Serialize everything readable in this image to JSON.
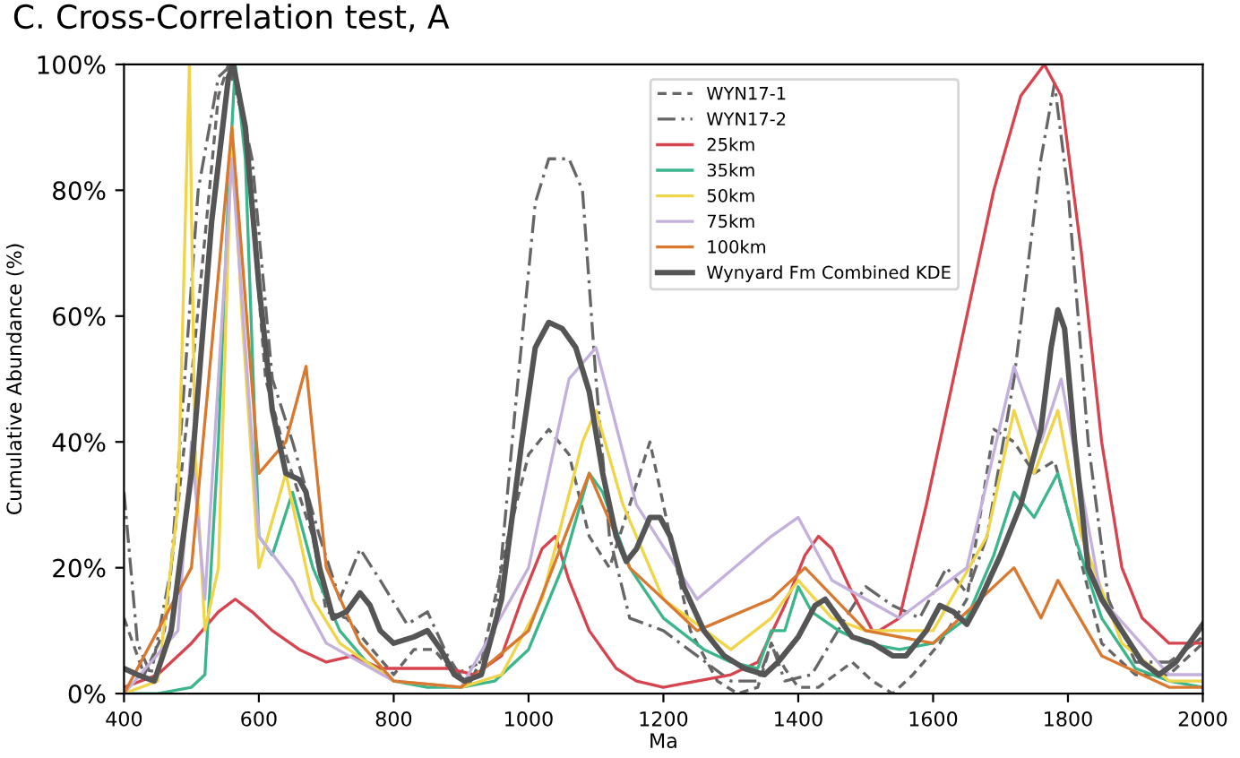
{
  "chart_data": {
    "type": "line",
    "title": "C. Cross-Correlation test, A",
    "xlabel": "Ma",
    "ylabel": "Cumulative Abundance (%)",
    "xlim": [
      400,
      2000
    ],
    "xticks": [
      400,
      600,
      800,
      1000,
      1200,
      1400,
      1600,
      1800,
      2000
    ],
    "ylim": [
      0,
      100
    ],
    "yticks": [
      {
        "value": 0,
        "label": "0%"
      },
      {
        "value": 20,
        "label": "20%"
      },
      {
        "value": 40,
        "label": "40%"
      },
      {
        "value": 60,
        "label": "60%"
      },
      {
        "value": 80,
        "label": "80%"
      },
      {
        "value": 100,
        "label": "100%"
      }
    ],
    "grid": false,
    "legend": "top",
    "marker": "none",
    "series": [
      {
        "name": "WYN17-1",
        "color": "#666666",
        "line_style": "dashed",
        "x": [
          400,
          430,
          460,
          500,
          540,
          555,
          580,
          610,
          640,
          680,
          700,
          730,
          760,
          800,
          830,
          860,
          890,
          930,
          970,
          1000,
          1030,
          1060,
          1090,
          1120,
          1150,
          1180,
          1210,
          1240,
          1280,
          1310,
          1340,
          1360,
          1380,
          1400,
          1430,
          1480,
          1510,
          1540,
          1570,
          1610,
          1650,
          1690,
          1720,
          1750,
          1780,
          1810,
          1850,
          1900,
          1950,
          2000
        ],
        "values": [
          12,
          3,
          10,
          50,
          95,
          100,
          90,
          50,
          38,
          25,
          13,
          12,
          8,
          3,
          7,
          7,
          3,
          5,
          25,
          38,
          42,
          38,
          25,
          20,
          30,
          40,
          25,
          10,
          2,
          0,
          1,
          8,
          4,
          1,
          1,
          5,
          2,
          0,
          3,
          8,
          15,
          42,
          40,
          35,
          37,
          25,
          8,
          3,
          3,
          8
        ]
      },
      {
        "name": "WYN17-2",
        "color": "#666666",
        "line_style": "dashdot",
        "x": [
          400,
          420,
          440,
          470,
          510,
          540,
          560,
          590,
          620,
          650,
          690,
          720,
          750,
          780,
          820,
          850,
          880,
          910,
          950,
          980,
          1010,
          1030,
          1060,
          1080,
          1100,
          1120,
          1150,
          1200,
          1250,
          1300,
          1340,
          1360,
          1380,
          1420,
          1470,
          1500,
          1540,
          1580,
          1620,
          1650,
          1680,
          1720,
          1760,
          1780,
          1800,
          1830,
          1860,
          1900,
          1950,
          2000
        ],
        "values": [
          32,
          8,
          3,
          20,
          80,
          98,
          100,
          85,
          50,
          40,
          25,
          15,
          23,
          18,
          11,
          13,
          6,
          1,
          10,
          45,
          78,
          85,
          85,
          80,
          50,
          25,
          12,
          10,
          6,
          2,
          2,
          8,
          2,
          3,
          12,
          17,
          14,
          12,
          20,
          16,
          25,
          50,
          85,
          97,
          80,
          40,
          15,
          5,
          5,
          9
        ]
      },
      {
        "name": "25km",
        "color": "#d6454f",
        "x": [
          400,
          450,
          500,
          540,
          565,
          590,
          620,
          660,
          700,
          740,
          780,
          830,
          880,
          920,
          960,
          990,
          1020,
          1040,
          1060,
          1090,
          1130,
          1160,
          1200,
          1250,
          1300,
          1340,
          1380,
          1410,
          1430,
          1450,
          1480,
          1510,
          1520,
          1550,
          1590,
          1640,
          1690,
          1730,
          1765,
          1790,
          1820,
          1850,
          1880,
          1910,
          1950,
          2000
        ],
        "values": [
          1,
          3,
          8,
          13,
          15,
          13,
          10,
          7,
          5,
          6,
          4,
          4,
          4,
          3,
          6,
          15,
          23,
          25,
          18,
          10,
          4,
          2,
          1,
          2,
          3,
          5,
          14,
          22,
          25,
          23,
          16,
          10,
          10,
          12,
          30,
          55,
          80,
          95,
          100,
          95,
          70,
          40,
          20,
          12,
          8,
          8
        ]
      },
      {
        "name": "35km",
        "color": "#3bb58a",
        "x": [
          400,
          450,
          500,
          520,
          540,
          555,
          565,
          580,
          600,
          620,
          650,
          680,
          720,
          760,
          800,
          850,
          900,
          950,
          1000,
          1050,
          1090,
          1110,
          1150,
          1200,
          1260,
          1300,
          1340,
          1360,
          1380,
          1400,
          1420,
          1460,
          1500,
          1550,
          1600,
          1650,
          1690,
          1720,
          1750,
          1785,
          1810,
          1850,
          1900,
          1950,
          2000
        ],
        "values": [
          0,
          0,
          1,
          3,
          40,
          80,
          100,
          85,
          25,
          22,
          32,
          20,
          10,
          5,
          2,
          1,
          1,
          2,
          7,
          20,
          35,
          32,
          20,
          12,
          7,
          5,
          4,
          10,
          10,
          17,
          13,
          10,
          8,
          7,
          8,
          12,
          22,
          32,
          28,
          35,
          25,
          12,
          4,
          2,
          1
        ]
      },
      {
        "name": "50km",
        "color": "#f0d54a",
        "x": [
          400,
          450,
          480,
          497,
          505,
          520,
          540,
          560,
          575,
          600,
          640,
          680,
          720,
          800,
          900,
          960,
          1020,
          1080,
          1100,
          1140,
          1200,
          1300,
          1360,
          1400,
          1450,
          1500,
          1600,
          1680,
          1720,
          1750,
          1785,
          1820,
          1880,
          1950,
          2000
        ],
        "values": [
          0,
          2,
          30,
          100,
          40,
          10,
          20,
          90,
          60,
          20,
          35,
          15,
          8,
          2,
          1,
          3,
          15,
          40,
          45,
          30,
          15,
          7,
          12,
          18,
          12,
          10,
          10,
          25,
          45,
          35,
          45,
          25,
          8,
          2,
          2
        ]
      },
      {
        "name": "75km",
        "color": "#c4b0dc",
        "x": [
          400,
          480,
          500,
          520,
          560,
          600,
          650,
          700,
          800,
          900,
          1000,
          1060,
          1100,
          1160,
          1250,
          1360,
          1400,
          1450,
          1550,
          1650,
          1720,
          1760,
          1790,
          1850,
          1950,
          2000
        ],
        "values": [
          0,
          10,
          40,
          15,
          85,
          25,
          18,
          8,
          2,
          1,
          20,
          50,
          55,
          30,
          15,
          25,
          28,
          18,
          12,
          20,
          52,
          40,
          50,
          15,
          3,
          3
        ]
      },
      {
        "name": "100km",
        "color": "#d9782f",
        "x": [
          400,
          500,
          560,
          600,
          640,
          670,
          700,
          750,
          800,
          900,
          1000,
          1090,
          1150,
          1250,
          1360,
          1410,
          1500,
          1600,
          1720,
          1760,
          1785,
          1850,
          1950,
          2000
        ],
        "values": [
          0,
          20,
          90,
          35,
          40,
          52,
          20,
          8,
          2,
          1,
          10,
          35,
          20,
          10,
          15,
          20,
          10,
          8,
          20,
          12,
          18,
          6,
          1,
          1
        ]
      },
      {
        "name": "Wynyard Fm Combined KDE",
        "color": "#555555",
        "x": [
          400,
          420,
          445,
          470,
          500,
          530,
          555,
          562,
          580,
          600,
          620,
          640,
          660,
          670,
          690,
          710,
          730,
          750,
          765,
          780,
          800,
          830,
          850,
          870,
          890,
          905,
          930,
          960,
          990,
          1010,
          1030,
          1050,
          1070,
          1090,
          1110,
          1130,
          1145,
          1160,
          1180,
          1195,
          1210,
          1230,
          1260,
          1290,
          1320,
          1350,
          1370,
          1400,
          1425,
          1440,
          1460,
          1480,
          1510,
          1540,
          1560,
          1590,
          1610,
          1630,
          1650,
          1670,
          1700,
          1730,
          1760,
          1775,
          1785,
          1795,
          1810,
          1830,
          1850,
          1880,
          1910,
          1935,
          1960,
          1980,
          2000
        ],
        "values": [
          4,
          3,
          2,
          10,
          35,
          75,
          98,
          100,
          90,
          65,
          45,
          35,
          34,
          32,
          20,
          12,
          13,
          16,
          14,
          10,
          8,
          9,
          10,
          7,
          3,
          2,
          3,
          15,
          40,
          55,
          59,
          58,
          55,
          48,
          35,
          25,
          21,
          23,
          28,
          28,
          25,
          17,
          10,
          6,
          4,
          3,
          5,
          9,
          14,
          15,
          12,
          9,
          8,
          6,
          6,
          10,
          14,
          13,
          11,
          15,
          22,
          30,
          42,
          55,
          61,
          58,
          40,
          20,
          15,
          10,
          5,
          3,
          5,
          8,
          11
        ]
      }
    ]
  }
}
